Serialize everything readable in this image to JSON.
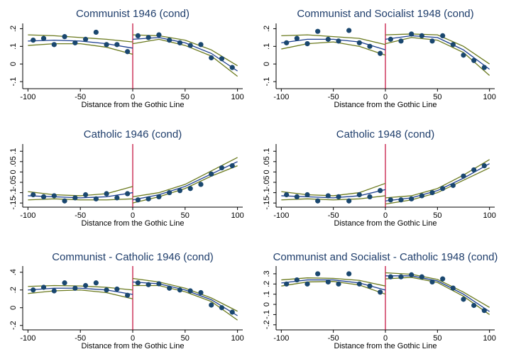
{
  "chart_data": [
    {
      "type": "rdplot",
      "title": "Communist 1946 (cond)",
      "x_label": "Distance from the Gothic Line",
      "xlim": [
        -105,
        105
      ],
      "xticks": [
        -100,
        -50,
        0,
        50,
        100
      ],
      "ylim": [
        -0.14,
        0.23
      ],
      "yticks": [
        {
          "value": -0.1,
          "label": "-.1"
        },
        0,
        {
          "value": 0.1,
          "label": ".1"
        },
        {
          "value": 0.2,
          "label": ".2"
        }
      ],
      "cutoff": 0,
      "point_color": "#1a476f",
      "fit_color": "#1a3d8f",
      "ci_color": "#6b7a1e",
      "cutoff_color": "#c10534",
      "points": {
        "x": [
          -95,
          -85,
          -75,
          -65,
          -55,
          -45,
          -35,
          -25,
          -15,
          -5,
          5,
          15,
          25,
          35,
          45,
          55,
          65,
          75,
          85,
          95
        ],
        "values": [
          0.135,
          0.145,
          0.11,
          0.155,
          0.12,
          0.14,
          0.18,
          0.11,
          0.11,
          0.07,
          0.16,
          0.15,
          0.165,
          0.135,
          0.12,
          0.105,
          0.11,
          0.035,
          0.03,
          -0.02
        ]
      },
      "fit": [
        {
          "x": [
            -100,
            -75,
            -50,
            -25,
            0
          ],
          "values": [
            0.13,
            0.135,
            0.13,
            0.115,
            0.09
          ],
          "upper": [
            0.165,
            0.16,
            0.15,
            0.14,
            0.125
          ],
          "lower": [
            0.105,
            0.115,
            0.115,
            0.095,
            0.055
          ]
        },
        {
          "x": [
            0,
            25,
            50,
            75,
            100
          ],
          "values": [
            0.14,
            0.15,
            0.12,
            0.06,
            -0.04
          ],
          "upper": [
            0.165,
            0.16,
            0.135,
            0.08,
            -0.01
          ],
          "lower": [
            0.115,
            0.14,
            0.105,
            0.045,
            -0.07
          ]
        }
      ]
    },
    {
      "type": "rdplot",
      "title": "Communist and Socialist 1948 (cond)",
      "x_label": "Distance from the Gothic Line",
      "xlim": [
        -105,
        105
      ],
      "xticks": [
        -100,
        -50,
        0,
        50,
        100
      ],
      "ylim": [
        -0.14,
        0.23
      ],
      "yticks": [
        {
          "value": -0.1,
          "label": "-.1"
        },
        0,
        {
          "value": 0.1,
          "label": ".1"
        },
        {
          "value": 0.2,
          "label": ".2"
        }
      ],
      "cutoff": 0,
      "point_color": "#1a476f",
      "fit_color": "#1a3d8f",
      "ci_color": "#6b7a1e",
      "cutoff_color": "#c10534",
      "points": {
        "x": [
          -95,
          -85,
          -75,
          -65,
          -55,
          -45,
          -35,
          -25,
          -15,
          -5,
          5,
          15,
          25,
          35,
          45,
          55,
          65,
          75,
          85,
          95
        ],
        "values": [
          0.12,
          0.145,
          0.115,
          0.185,
          0.14,
          0.13,
          0.19,
          0.12,
          0.1,
          0.06,
          0.14,
          0.13,
          0.17,
          0.16,
          0.13,
          0.16,
          0.11,
          0.05,
          0.02,
          -0.02
        ]
      },
      "fit": [
        {
          "x": [
            -100,
            -75,
            -50,
            -25,
            0
          ],
          "values": [
            0.12,
            0.14,
            0.14,
            0.125,
            0.08
          ],
          "upper": [
            0.16,
            0.165,
            0.155,
            0.145,
            0.11
          ],
          "lower": [
            0.085,
            0.115,
            0.125,
            0.1,
            0.05
          ]
        },
        {
          "x": [
            0,
            25,
            50,
            75,
            100
          ],
          "values": [
            0.14,
            0.16,
            0.15,
            0.08,
            -0.03
          ],
          "upper": [
            0.165,
            0.17,
            0.165,
            0.1,
            0
          ],
          "lower": [
            0.115,
            0.15,
            0.135,
            0.065,
            -0.065
          ]
        }
      ]
    },
    {
      "type": "rdplot",
      "title": "Catholic 1946 (cond)",
      "x_label": "Distance from the Gothic Line",
      "xlim": [
        -105,
        105
      ],
      "xticks": [
        -100,
        -50,
        0,
        50,
        100
      ],
      "ylim": [
        -0.17,
        0.135
      ],
      "yticks": [
        {
          "value": -0.15,
          "label": "-.15"
        },
        {
          "value": -0.1,
          "label": "-.1"
        },
        {
          "value": -0.05,
          "label": "-.05"
        },
        0,
        {
          "value": 0.05,
          "label": ".05"
        },
        {
          "value": 0.1,
          "label": ".1"
        }
      ],
      "cutoff": 0,
      "point_color": "#1a476f",
      "fit_color": "#1a3d8f",
      "ci_color": "#6b7a1e",
      "cutoff_color": "#c10534",
      "points": {
        "x": [
          -95,
          -85,
          -75,
          -65,
          -55,
          -45,
          -35,
          -25,
          -15,
          -5,
          5,
          15,
          25,
          35,
          45,
          55,
          65,
          75,
          85,
          95
        ],
        "values": [
          -0.11,
          -0.12,
          -0.115,
          -0.14,
          -0.125,
          -0.11,
          -0.13,
          -0.105,
          -0.125,
          -0.105,
          -0.135,
          -0.13,
          -0.12,
          -0.1,
          -0.09,
          -0.08,
          -0.06,
          -0.01,
          0.02,
          0.03
        ]
      },
      "fit": [
        {
          "x": [
            -100,
            -75,
            -50,
            -25,
            0
          ],
          "values": [
            -0.115,
            -0.12,
            -0.125,
            -0.12,
            -0.1
          ],
          "upper": [
            -0.095,
            -0.11,
            -0.115,
            -0.105,
            -0.07
          ],
          "lower": [
            -0.135,
            -0.13,
            -0.135,
            -0.135,
            -0.13
          ]
        },
        {
          "x": [
            0,
            25,
            50,
            75,
            100
          ],
          "values": [
            -0.135,
            -0.11,
            -0.07,
            -0.01,
            0.05
          ],
          "upper": [
            -0.12,
            -0.1,
            -0.06,
            0.005,
            0.07
          ],
          "lower": [
            -0.15,
            -0.12,
            -0.08,
            -0.02,
            0.03
          ]
        }
      ]
    },
    {
      "type": "rdplot",
      "title": "Catholic 1948 (cond)",
      "x_label": "Distance from the Gothic Line",
      "xlim": [
        -105,
        105
      ],
      "xticks": [
        -100,
        -50,
        0,
        50,
        100
      ],
      "ylim": [
        -0.17,
        0.135
      ],
      "yticks": [
        {
          "value": -0.15,
          "label": "-.15"
        },
        {
          "value": -0.1,
          "label": "-.1"
        },
        {
          "value": -0.05,
          "label": "-.05"
        },
        0,
        {
          "value": 0.05,
          "label": ".05"
        },
        {
          "value": 0.1,
          "label": ".1"
        }
      ],
      "cutoff": 0,
      "point_color": "#1a476f",
      "fit_color": "#1a3d8f",
      "ci_color": "#6b7a1e",
      "cutoff_color": "#c10534",
      "points": {
        "x": [
          -95,
          -85,
          -75,
          -65,
          -55,
          -45,
          -35,
          -25,
          -15,
          -5,
          5,
          15,
          25,
          35,
          45,
          55,
          65,
          75,
          85,
          95
        ],
        "values": [
          -0.11,
          -0.12,
          -0.11,
          -0.14,
          -0.115,
          -0.12,
          -0.14,
          -0.11,
          -0.12,
          -0.09,
          -0.135,
          -0.135,
          -0.13,
          -0.115,
          -0.1,
          -0.08,
          -0.065,
          -0.02,
          0.01,
          0.03
        ]
      },
      "fit": [
        {
          "x": [
            -100,
            -75,
            -50,
            -25,
            0
          ],
          "values": [
            -0.115,
            -0.12,
            -0.125,
            -0.115,
            -0.085
          ],
          "upper": [
            -0.095,
            -0.11,
            -0.115,
            -0.1,
            -0.055
          ],
          "lower": [
            -0.135,
            -0.13,
            -0.135,
            -0.13,
            -0.115
          ]
        },
        {
          "x": [
            0,
            25,
            50,
            75,
            100
          ],
          "values": [
            -0.14,
            -0.125,
            -0.09,
            -0.03,
            0.04
          ],
          "upper": [
            -0.125,
            -0.115,
            -0.08,
            -0.015,
            0.06
          ],
          "lower": [
            -0.155,
            -0.135,
            -0.1,
            -0.04,
            0.02
          ]
        }
      ]
    },
    {
      "type": "rdplot",
      "title": "Communist - Catholic 1946 (cond)",
      "x_label": "Distance from the Gothic Line",
      "xlim": [
        -105,
        105
      ],
      "xticks": [
        -100,
        -50,
        0,
        50,
        100
      ],
      "ylim": [
        -0.25,
        0.47
      ],
      "yticks": [
        {
          "value": -0.2,
          "label": "-.2"
        },
        0,
        {
          "value": 0.2,
          "label": ".2"
        },
        {
          "value": 0.4,
          "label": ".4"
        }
      ],
      "cutoff": 0,
      "point_color": "#1a476f",
      "fit_color": "#1a3d8f",
      "ci_color": "#6b7a1e",
      "cutoff_color": "#c10534",
      "points": {
        "x": [
          -95,
          -85,
          -75,
          -65,
          -55,
          -45,
          -35,
          -25,
          -15,
          -5,
          5,
          15,
          25,
          35,
          45,
          55,
          65,
          75,
          85,
          95
        ],
        "values": [
          0.2,
          0.23,
          0.19,
          0.28,
          0.22,
          0.25,
          0.28,
          0.2,
          0.21,
          0.14,
          0.28,
          0.26,
          0.27,
          0.22,
          0.2,
          0.19,
          0.17,
          0.03,
          0,
          -0.05
        ]
      },
      "fit": [
        {
          "x": [
            -100,
            -75,
            -50,
            -25,
            0
          ],
          "values": [
            0.2,
            0.22,
            0.22,
            0.2,
            0.15
          ],
          "upper": [
            0.24,
            0.25,
            0.245,
            0.23,
            0.2
          ],
          "lower": [
            0.16,
            0.19,
            0.2,
            0.17,
            0.1
          ]
        },
        {
          "x": [
            0,
            25,
            50,
            75,
            100
          ],
          "values": [
            0.29,
            0.27,
            0.2,
            0.09,
            -0.09
          ],
          "upper": [
            0.33,
            0.29,
            0.22,
            0.11,
            -0.04
          ],
          "lower": [
            0.25,
            0.25,
            0.18,
            0.07,
            -0.14
          ]
        }
      ]
    },
    {
      "type": "rdplot",
      "title": "Communist and Socialist - Catholic 1948 (cond)",
      "x_label": "Distance from the Gothic Line",
      "xlim": [
        -105,
        105
      ],
      "xticks": [
        -100,
        -50,
        0,
        50,
        100
      ],
      "ylim": [
        -0.25,
        0.376
      ],
      "yticks": [
        {
          "value": -0.2,
          "label": "-.2"
        },
        {
          "value": -0.1,
          "label": "-.1"
        },
        0,
        {
          "value": 0.1,
          "label": ".1"
        },
        {
          "value": 0.2,
          "label": ".2"
        },
        {
          "value": 0.3,
          "label": ".3"
        }
      ],
      "cutoff": 0,
      "point_color": "#1a476f",
      "fit_color": "#1a3d8f",
      "ci_color": "#6b7a1e",
      "cutoff_color": "#c10534",
      "points": {
        "x": [
          -95,
          -85,
          -75,
          -65,
          -55,
          -45,
          -35,
          -25,
          -15,
          -5,
          5,
          15,
          25,
          35,
          45,
          55,
          65,
          75,
          85,
          95
        ],
        "values": [
          0.2,
          0.24,
          0.2,
          0.3,
          0.22,
          0.2,
          0.3,
          0.2,
          0.18,
          0.12,
          0.27,
          0.27,
          0.29,
          0.27,
          0.22,
          0.25,
          0.16,
          0.05,
          -0.01,
          -0.06
        ]
      },
      "fit": [
        {
          "x": [
            -100,
            -75,
            -50,
            -25,
            0
          ],
          "values": [
            0.21,
            0.24,
            0.24,
            0.21,
            0.14
          ],
          "upper": [
            0.24,
            0.26,
            0.255,
            0.235,
            0.18
          ],
          "lower": [
            0.18,
            0.22,
            0.225,
            0.19,
            0.1
          ]
        },
        {
          "x": [
            0,
            25,
            50,
            75,
            100
          ],
          "values": [
            0.28,
            0.28,
            0.23,
            0.1,
            -0.07
          ],
          "upper": [
            0.31,
            0.295,
            0.245,
            0.12,
            -0.03
          ],
          "lower": [
            0.25,
            0.265,
            0.215,
            0.08,
            -0.1
          ]
        }
      ]
    }
  ]
}
